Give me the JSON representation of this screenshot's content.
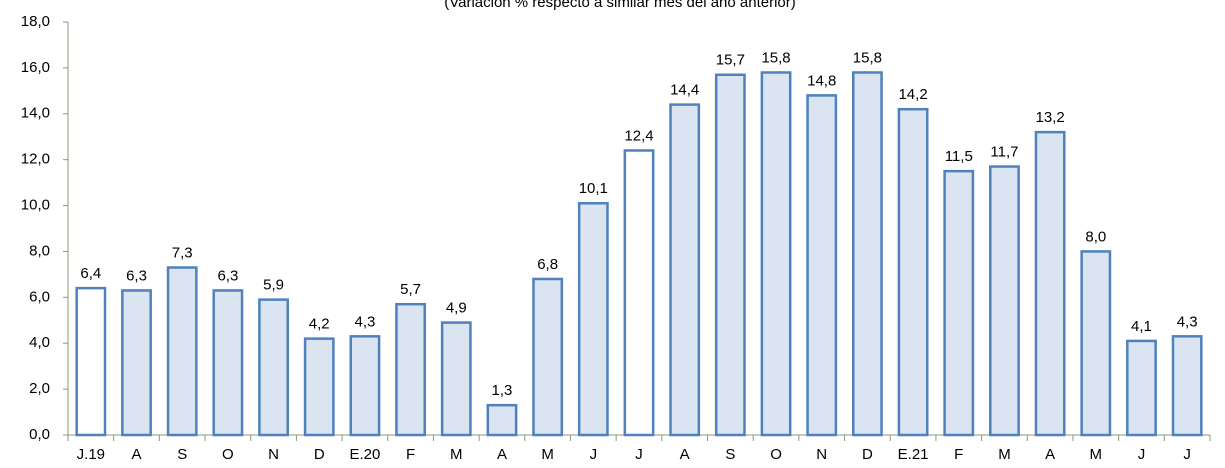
{
  "chart_data": {
    "type": "bar",
    "subtitle": "(Variación % respecto a similar mes del año anterior)",
    "categories": [
      "J.19",
      "A",
      "S",
      "O",
      "N",
      "D",
      "E.20",
      "F",
      "M",
      "A",
      "M",
      "J",
      "J",
      "A",
      "S",
      "O",
      "N",
      "D",
      "E.21",
      "F",
      "M",
      "A",
      "M",
      "J",
      "J"
    ],
    "values": [
      6.4,
      6.3,
      7.3,
      6.3,
      5.9,
      4.2,
      4.3,
      5.7,
      4.9,
      1.3,
      6.8,
      10.1,
      12.4,
      14.4,
      15.7,
      15.8,
      14.8,
      15.8,
      14.2,
      11.5,
      11.7,
      13.2,
      8.0,
      4.1,
      4.3
    ],
    "value_labels": [
      "6,4",
      "6,3",
      "7,3",
      "6,3",
      "5,9",
      "4,2",
      "4,3",
      "5,7",
      "4,9",
      "1,3",
      "6,8",
      "10,1",
      "12,4",
      "14,4",
      "15,7",
      "15,8",
      "14,8",
      "15,8",
      "14,2",
      "11,5",
      "11,7",
      "13,2",
      "8,0",
      "4,1",
      "4,3"
    ],
    "color": "#dbe5f1",
    "highlight_color": "#ffffff",
    "highlight": [
      0,
      12
    ],
    "edge_color": "#4f81bd",
    "ylim": [
      0,
      18
    ],
    "yticks": [
      {
        "value": 0,
        "label": "0,0"
      },
      {
        "value": 2,
        "label": "2,0"
      },
      {
        "value": 4,
        "label": "4,0"
      },
      {
        "value": 6,
        "label": "6,0"
      },
      {
        "value": 8,
        "label": "8,0"
      },
      {
        "value": 10,
        "label": "10,0"
      },
      {
        "value": 12,
        "label": "12,0"
      },
      {
        "value": 14,
        "label": "14,0"
      },
      {
        "value": 16,
        "label": "16,0"
      },
      {
        "value": 18,
        "label": "18,0"
      }
    ],
    "grid": false
  }
}
